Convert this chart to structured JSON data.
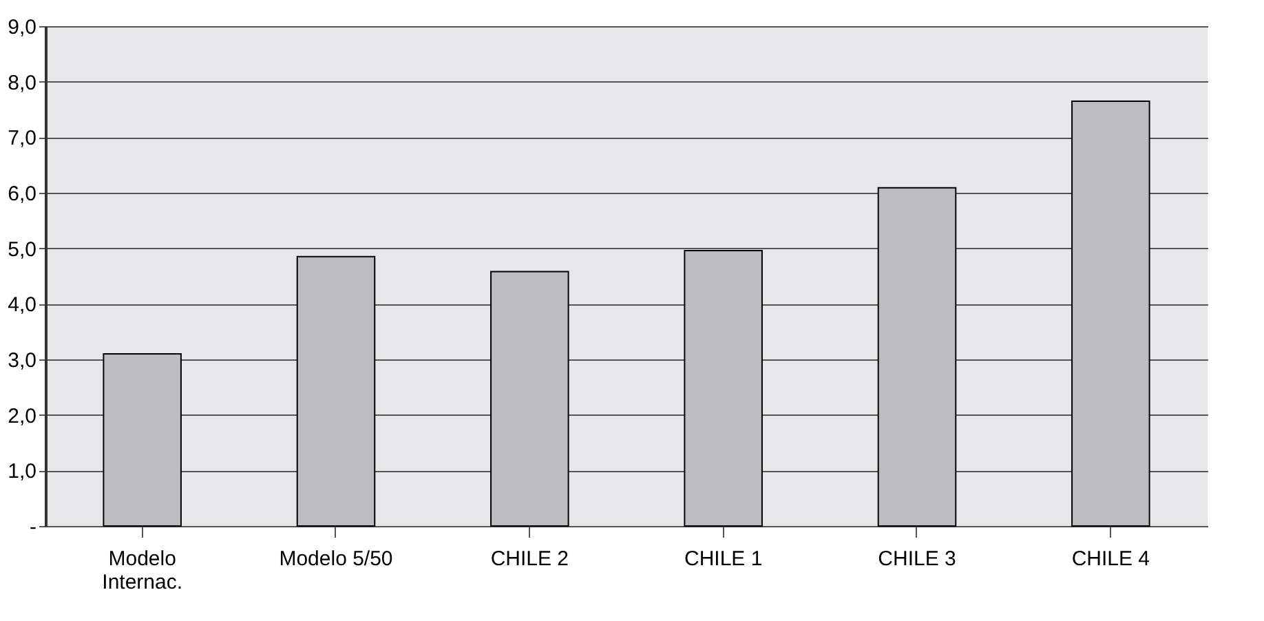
{
  "chart_data": {
    "type": "bar",
    "categories": [
      "Modelo\nInternac.",
      "Modelo 5/50",
      "CHILE 2",
      "CHILE 1",
      "CHILE 3",
      "CHILE 4"
    ],
    "values": [
      3.1,
      4.85,
      4.58,
      4.96,
      6.09,
      7.65
    ],
    "color": "#bcbdc0",
    "ylim": [
      0,
      9
    ],
    "yticks": [
      {
        "value": 0,
        "label": "-"
      },
      {
        "value": 1,
        "label": "1,0"
      },
      {
        "value": 2,
        "label": "2,0"
      },
      {
        "value": 3,
        "label": "3,0"
      },
      {
        "value": 4,
        "label": "4,0"
      },
      {
        "value": 5,
        "label": "5,0"
      },
      {
        "value": 6,
        "label": "6,0"
      },
      {
        "value": 7,
        "label": "7,0"
      },
      {
        "value": 8,
        "label": "8,0"
      },
      {
        "value": 9,
        "label": "9,0"
      }
    ],
    "grid": "y"
  }
}
